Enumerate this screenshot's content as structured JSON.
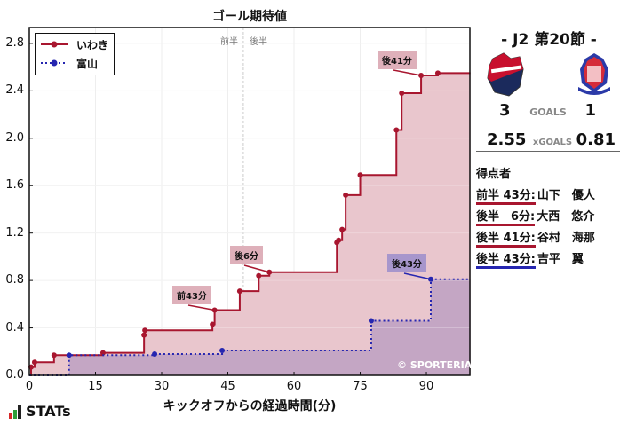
{
  "title": "ゴール期待値",
  "x_axis_title": "キックオフからの経過時間(分)",
  "half_labels": {
    "first": "前半",
    "second": "後半"
  },
  "copyright": "© SPORTERIA",
  "brand": "STATs",
  "legend": [
    {
      "label": "いわき",
      "color": "#a8162f",
      "style": "solid"
    },
    {
      "label": "富山",
      "color": "#2626b0",
      "style": "dotted"
    }
  ],
  "annotations": [
    {
      "label": "前43分",
      "team": "いわき"
    },
    {
      "label": "後6分",
      "team": "いわき"
    },
    {
      "label": "後41分",
      "team": "いわき"
    },
    {
      "label": "後43分",
      "team": "富山"
    }
  ],
  "match": {
    "round": "-  J2 第20節  -",
    "home": {
      "name": "いわき",
      "goals": "3",
      "xgoals": "2.55",
      "logo": "iwaki-fc-crest"
    },
    "away": {
      "name": "富山",
      "goals": "1",
      "xgoals": "0.81",
      "logo": "kataller-toyama-crest"
    },
    "goals_label": "GOALS",
    "xgoals_label": "xGOALS"
  },
  "scorers": {
    "title": "得点者",
    "items": [
      {
        "time": "前半 43分:",
        "name": "山下　優人",
        "team": "home"
      },
      {
        "time": "後半　6分:",
        "name": "大西　悠介",
        "team": "home"
      },
      {
        "time": "後半 41分:",
        "name": "谷村　海那",
        "team": "home"
      },
      {
        "time": "後半 43分:",
        "name": "吉平　翼",
        "team": "away"
      }
    ]
  },
  "colors": {
    "home": "#a8162f",
    "away": "#2626b0",
    "home_fill": "#e9c6cd",
    "away_fill": "#c4a6c4",
    "home_ann": "#deb0ba",
    "away_ann": "#a796cc"
  },
  "chart_data": {
    "type": "line",
    "step": true,
    "title": "ゴール期待値",
    "xlabel": "キックオフからの経過時間(分)",
    "ylabel": "",
    "xlim": [
      0,
      100
    ],
    "ylim": [
      0,
      2.92
    ],
    "xticks": [
      0,
      15,
      30,
      45,
      60,
      75,
      90
    ],
    "yticks": [
      0.0,
      0.4,
      0.8,
      1.2,
      1.6,
      2.0,
      2.4,
      2.8
    ],
    "ytick_labels": [
      "0.0",
      "0.4",
      "0.8",
      "1.2",
      "1.6",
      "2.0",
      "2.4",
      "2.8"
    ],
    "halftime_x": 48.5,
    "grid": true,
    "legend_position": "upper left",
    "series": [
      {
        "name": "いわき",
        "end_x": 100,
        "x": [
          0.4,
          1.2,
          5.6,
          16.7,
          26.0,
          26.2,
          41.5,
          42.0,
          47.7,
          52.0,
          54.4,
          69.7,
          70.1,
          70.9,
          71.7,
          75.0,
          83.2,
          84.4,
          88.8,
          92.6
        ],
        "y": [
          0.07,
          0.11,
          0.17,
          0.19,
          0.34,
          0.38,
          0.43,
          0.55,
          0.71,
          0.84,
          0.87,
          1.12,
          1.14,
          1.23,
          1.52,
          1.69,
          2.07,
          2.38,
          2.53,
          2.55
        ]
      },
      {
        "name": "富山",
        "end_x": 100,
        "x": [
          9.0,
          28.4,
          43.7,
          77.5,
          91.0
        ],
        "y": [
          0.17,
          0.18,
          0.21,
          0.46,
          0.81
        ]
      }
    ],
    "annotations": [
      {
        "text": "前43分",
        "x": 42.0,
        "y": 0.55
      },
      {
        "text": "後6分",
        "x": 54.4,
        "y": 0.87
      },
      {
        "text": "後41分",
        "x": 88.8,
        "y": 2.53
      },
      {
        "text": "後43分",
        "x": 91.0,
        "y": 0.81
      }
    ]
  }
}
